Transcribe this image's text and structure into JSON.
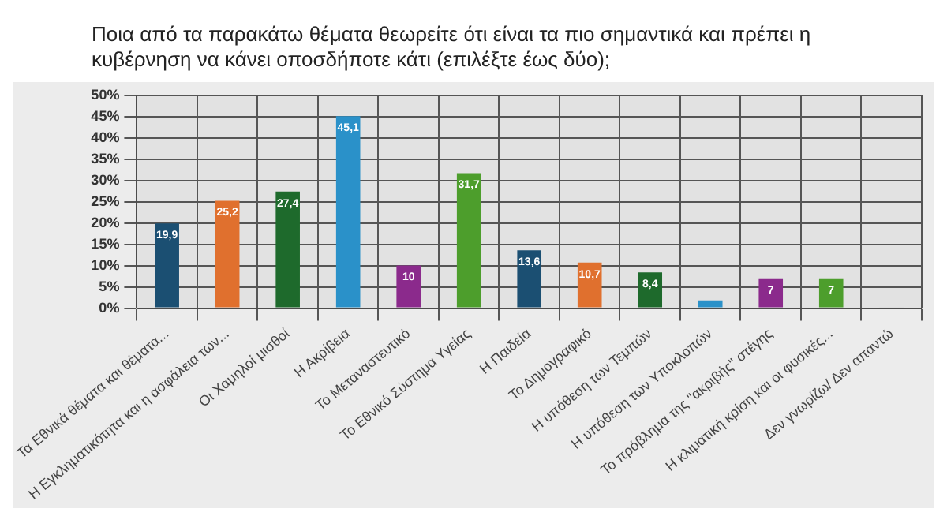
{
  "chart_data": {
    "type": "bar",
    "title": "Ποια από τα παρακάτω θέματα θεωρείτε ότι είναι τα πιο σημαντικά και πρέπει η κυβέρνηση να κάνει  οποσδήποτε κάτι (επιλέξτε έως δύο);",
    "categories": [
      "Τα Εθνικά θέματα και θέματα...",
      "Η Εγκληματικότητα και η ασφάλεια των...",
      "Οι Χαμηλοί μισθοί",
      "Η Ακρίβεια",
      "Το Μεταναστευτικό",
      "Το Εθνικό Σύστημα Υγείας",
      "Η Παιδεία",
      "Το Δημογραφικό",
      "Η υπόθεση των Τεμπών",
      "Η υπόθεση των Υποκλοπών",
      "Το πρόβλημα της \"ακριβής\" στέγης",
      "Η κλιματική κρίση και οι φυσικές...",
      "Δεν γνωρίζω/ Δεν απαντώ"
    ],
    "values": [
      19.9,
      25.2,
      27.4,
      45.1,
      10,
      31.7,
      13.6,
      10.7,
      8.4,
      1.8,
      7,
      7,
      0.3
    ],
    "value_labels": [
      "19,9",
      "25,2",
      "27,4",
      "45,1",
      "10",
      "31,7",
      "13,6",
      "10,7",
      "8,4",
      null,
      "7",
      "7",
      null
    ],
    "colors": [
      "#1b4f72",
      "#e0702e",
      "#1e6a2c",
      "#2a91c9",
      "#8b2a8c",
      "#4d9e2c",
      "#1b4f72",
      "#e0702e",
      "#1e6a2c",
      "#2a91c9",
      "#8b2a8c",
      "#4d9e2c",
      "#d8d8d8"
    ],
    "ylim": [
      0,
      50
    ],
    "yticks": [
      {
        "value": 0,
        "label": "0%"
      },
      {
        "value": 5,
        "label": "5%"
      },
      {
        "value": 10,
        "label": "10%"
      },
      {
        "value": 15,
        "label": "15%"
      },
      {
        "value": 20,
        "label": "20%"
      },
      {
        "value": 25,
        "label": "25%"
      },
      {
        "value": 30,
        "label": "30%"
      },
      {
        "value": 35,
        "label": "35%"
      },
      {
        "value": 40,
        "label": "40%"
      },
      {
        "value": 45,
        "label": "45%"
      },
      {
        "value": 50,
        "label": "50%"
      }
    ],
    "grid": true
  }
}
